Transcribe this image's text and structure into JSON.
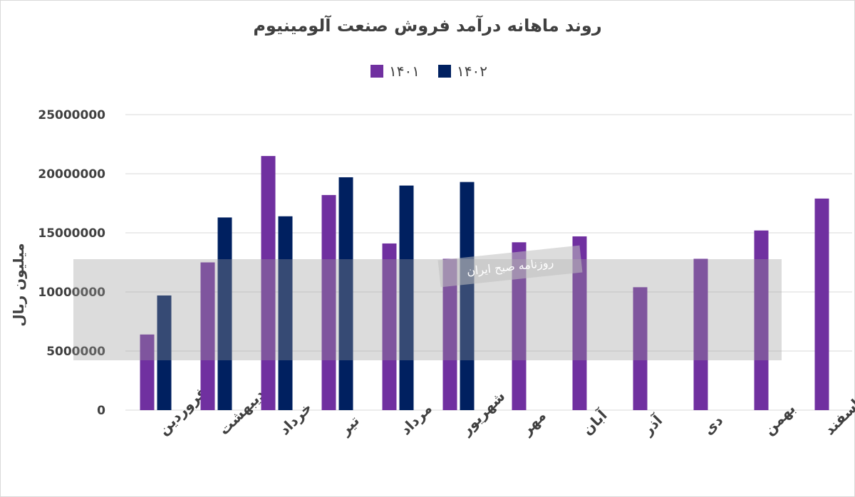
{
  "chart_data": {
    "type": "bar",
    "title": "روند ماهانه درآمد فروش صنعت آلومینیوم",
    "ylabel": "میلیون ریال",
    "xlabel": "",
    "ylim": [
      0,
      25000000
    ],
    "yticks": [
      0,
      5000000,
      10000000,
      15000000,
      20000000,
      25000000
    ],
    "ytick_labels": [
      "0",
      "5000000",
      "10000000",
      "15000000",
      "20000000",
      "25000000"
    ],
    "legend_position": "top-center",
    "grid": true,
    "categories": [
      "فروردین",
      "اردیبهشت",
      "خرداد",
      "تیر",
      "مرداد",
      "شهریور",
      "مهر",
      "آبان",
      "آذر",
      "دی",
      "بهمن",
      "اسفند"
    ],
    "series": [
      {
        "name": "۱۴۰۱",
        "color": "#7030a0",
        "values": [
          6400000,
          12500000,
          21500000,
          18200000,
          14100000,
          12800000,
          14200000,
          14700000,
          10400000,
          12800000,
          15200000,
          17900000
        ]
      },
      {
        "name": "۱۴۰۲",
        "color": "#002060",
        "values": [
          9700000,
          16300000,
          16400000,
          19700000,
          19000000,
          19300000,
          null,
          null,
          null,
          null,
          null,
          null
        ]
      }
    ]
  },
  "watermark": {
    "text": "روزنامه صبح ایران"
  }
}
